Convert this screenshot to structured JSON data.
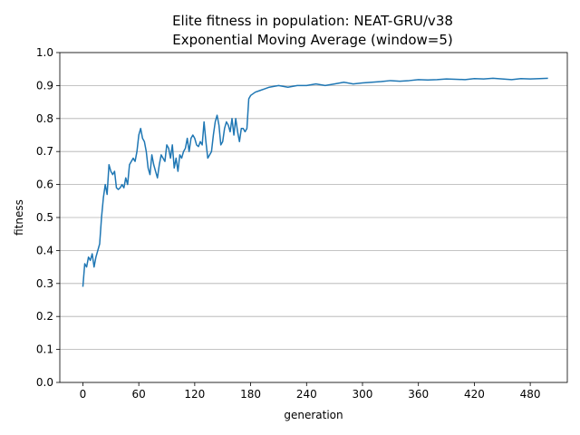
{
  "chart_data": {
    "type": "line",
    "title": "Elite fitness in population: NEAT-GRU/v38",
    "subtitle": "Exponential Moving Average (window=5)",
    "xlabel": "generation",
    "ylabel": "fitness",
    "xlim": [
      -24.75,
      519.75
    ],
    "ylim": [
      0.0,
      1.0
    ],
    "xticks": [
      0,
      60,
      120,
      180,
      240,
      300,
      360,
      420,
      480
    ],
    "yticks": [
      0.0,
      0.1,
      0.2,
      0.3,
      0.4,
      0.5,
      0.6,
      0.7,
      0.8,
      0.9,
      1.0
    ],
    "grid": "y-major",
    "color": "#1f77b4",
    "series": [
      {
        "x": [
          0,
          2,
          4,
          6,
          8,
          10,
          12,
          14,
          16,
          18,
          20,
          22,
          24,
          26,
          28,
          30,
          32,
          34,
          36,
          38,
          40,
          42,
          44,
          46,
          48,
          50,
          52,
          54,
          56,
          58,
          60,
          62,
          64,
          66,
          68,
          70,
          72,
          74,
          76,
          78,
          80,
          82,
          84,
          86,
          88,
          90,
          92,
          94,
          96,
          98,
          100,
          102,
          104,
          106,
          108,
          110,
          112,
          114,
          116,
          118,
          120,
          122,
          124,
          126,
          128,
          130,
          132,
          134,
          136,
          138,
          140,
          142,
          144,
          146,
          148,
          150,
          152,
          154,
          156,
          158,
          160,
          162,
          164,
          166,
          168,
          170,
          172,
          174,
          176,
          178,
          180,
          185,
          190,
          195,
          200,
          210,
          220,
          230,
          240,
          250,
          260,
          270,
          280,
          290,
          300,
          310,
          320,
          330,
          340,
          350,
          360,
          370,
          380,
          390,
          400,
          410,
          420,
          430,
          440,
          450,
          460,
          470,
          480,
          490,
          499
        ],
        "y": [
          0.29,
          0.36,
          0.35,
          0.38,
          0.37,
          0.39,
          0.35,
          0.38,
          0.4,
          0.42,
          0.5,
          0.56,
          0.6,
          0.57,
          0.66,
          0.64,
          0.63,
          0.64,
          0.59,
          0.585,
          0.59,
          0.6,
          0.59,
          0.62,
          0.6,
          0.66,
          0.67,
          0.68,
          0.67,
          0.7,
          0.75,
          0.77,
          0.74,
          0.73,
          0.7,
          0.65,
          0.63,
          0.69,
          0.66,
          0.64,
          0.62,
          0.66,
          0.69,
          0.68,
          0.67,
          0.72,
          0.71,
          0.68,
          0.72,
          0.65,
          0.68,
          0.64,
          0.69,
          0.68,
          0.7,
          0.71,
          0.74,
          0.7,
          0.74,
          0.75,
          0.74,
          0.72,
          0.715,
          0.73,
          0.72,
          0.79,
          0.73,
          0.68,
          0.69,
          0.7,
          0.75,
          0.79,
          0.81,
          0.78,
          0.72,
          0.73,
          0.77,
          0.79,
          0.78,
          0.76,
          0.8,
          0.75,
          0.8,
          0.76,
          0.73,
          0.77,
          0.77,
          0.76,
          0.77,
          0.86,
          0.87,
          0.88,
          0.885,
          0.89,
          0.895,
          0.9,
          0.895,
          0.9,
          0.9,
          0.905,
          0.9,
          0.905,
          0.91,
          0.905,
          0.908,
          0.91,
          0.912,
          0.915,
          0.913,
          0.915,
          0.918,
          0.917,
          0.918,
          0.92,
          0.919,
          0.918,
          0.921,
          0.92,
          0.922,
          0.92,
          0.918,
          0.921,
          0.92,
          0.921,
          0.922
        ]
      }
    ]
  }
}
